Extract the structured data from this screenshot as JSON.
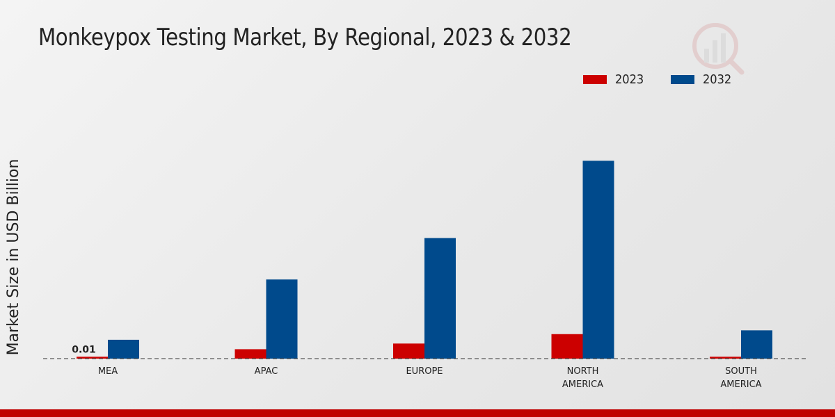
{
  "chart_data": {
    "type": "bar",
    "title": "Monkeypox Testing Market, By Regional, 2023 & 2032",
    "xlabel": "",
    "ylabel": "Market Size in USD Billion",
    "categories": [
      [
        "MEA"
      ],
      [
        "APAC"
      ],
      [
        "EUROPE"
      ],
      [
        "NORTH",
        "AMERICA"
      ],
      [
        "SOUTH",
        "AMERICA"
      ]
    ],
    "series": [
      {
        "name": "2023",
        "color": "#cc0000",
        "values": [
          0.01,
          0.05,
          0.08,
          0.13,
          0.01
        ]
      },
      {
        "name": "2032",
        "color": "#004a8c",
        "values": [
          0.1,
          0.42,
          0.64,
          1.05,
          0.15
        ]
      }
    ],
    "data_labels": [
      {
        "series": 0,
        "index": 0,
        "text": "0.01"
      }
    ],
    "ylim": [
      0,
      1.35
    ],
    "grid": false,
    "legend_position": "top-right"
  },
  "colors": {
    "footer": "#c00000"
  }
}
